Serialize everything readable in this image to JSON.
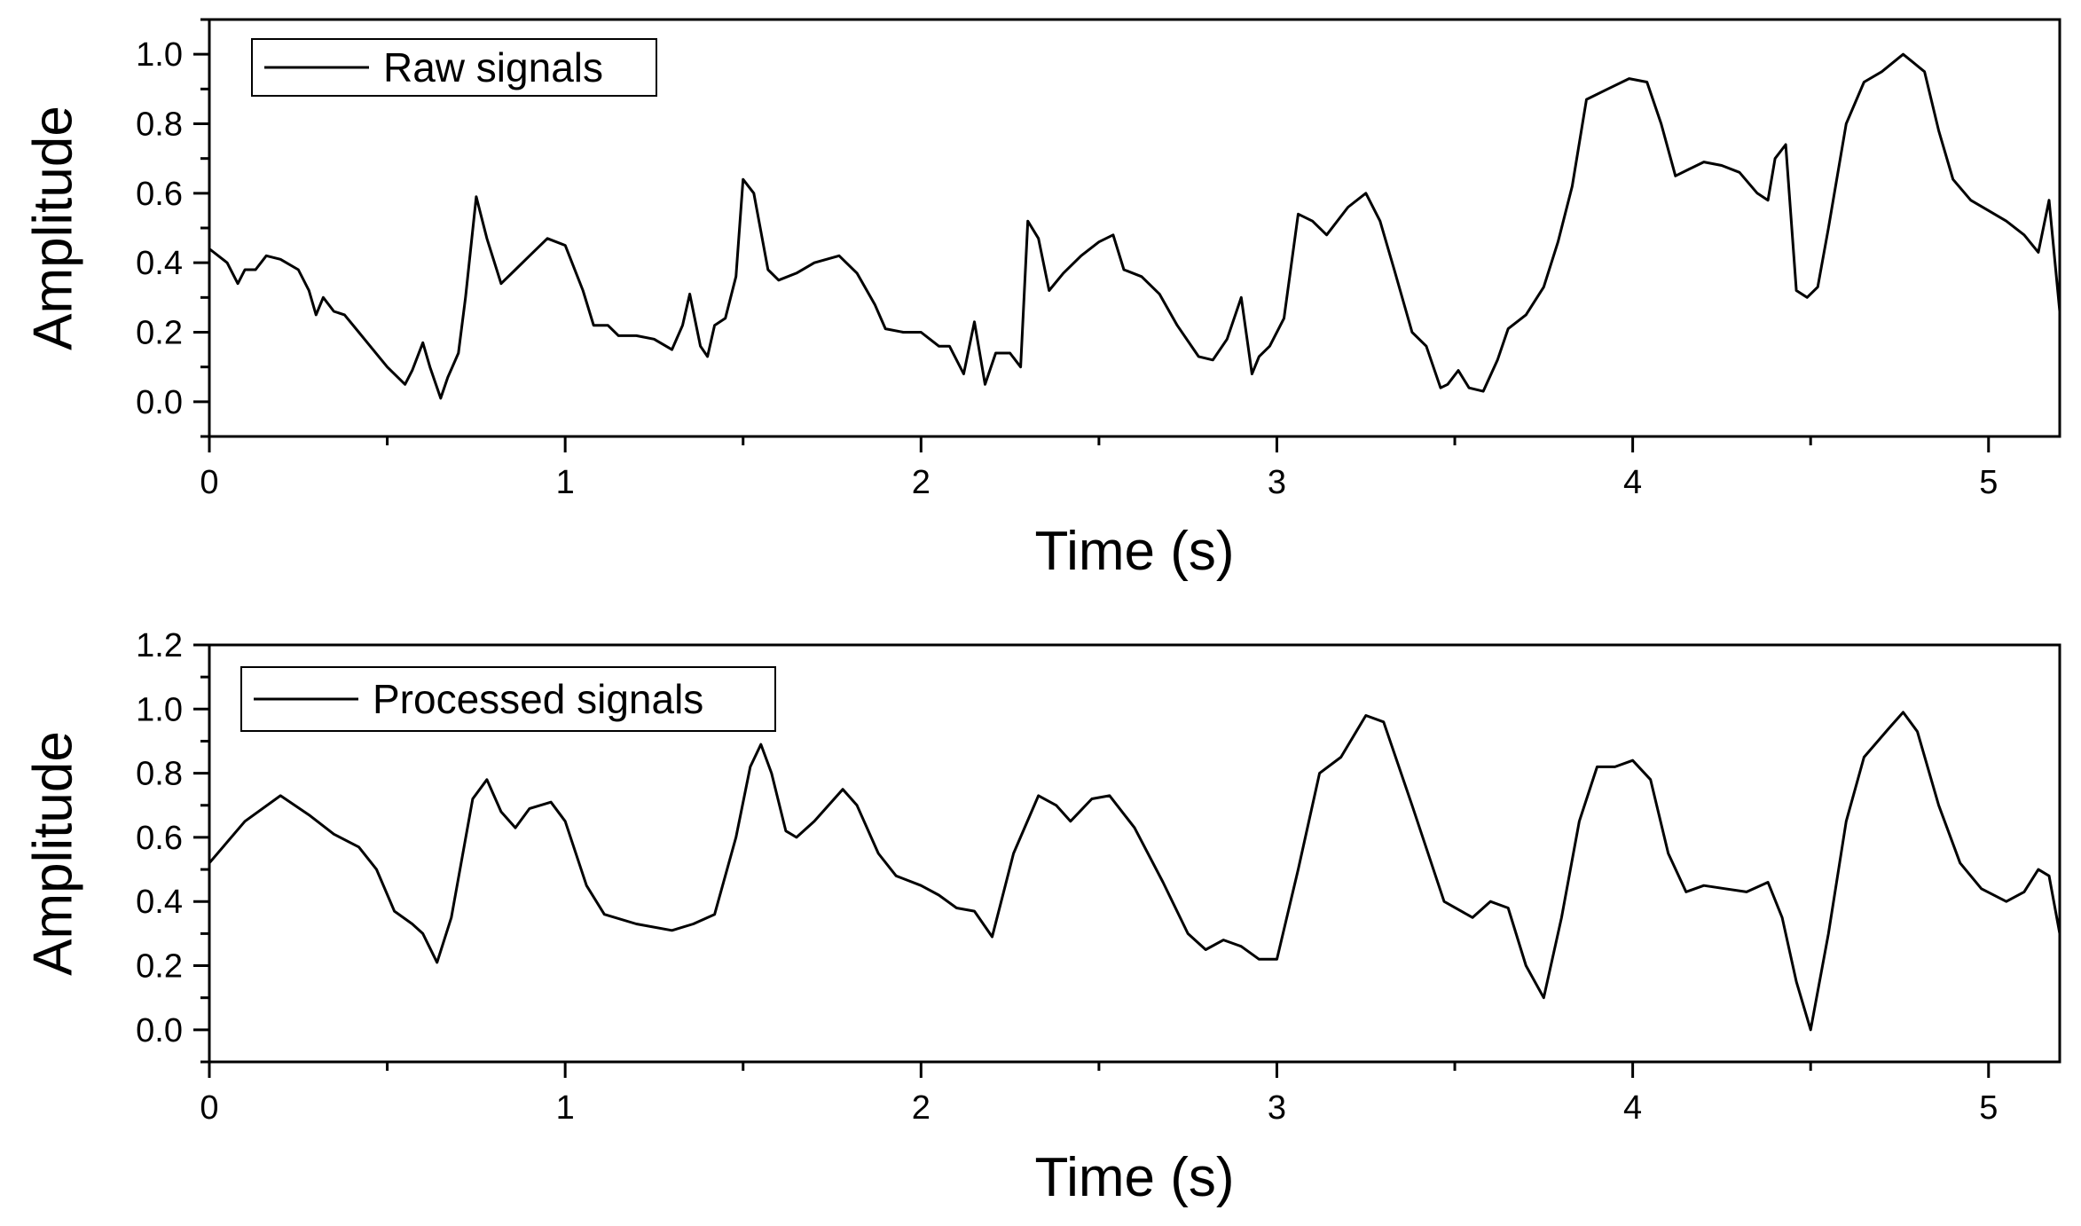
{
  "chart_data": [
    {
      "type": "line",
      "title": "",
      "xlabel": "Time (s)",
      "ylabel": "Amplitude",
      "xlim": [
        0,
        5.2
      ],
      "ylim": [
        -0.1,
        1.1
      ],
      "xticks": [
        0,
        1,
        2,
        3,
        4,
        5
      ],
      "xtick_labels": [
        "0",
        "1",
        "2",
        "3",
        "4",
        "5"
      ],
      "yticks": [
        0.0,
        0.2,
        0.4,
        0.6,
        0.8,
        1.0
      ],
      "ytick_labels": [
        "0.0",
        "0.2",
        "0.4",
        "0.6",
        "0.8",
        "1.0"
      ],
      "legend_position": "top-left",
      "grid": false,
      "series": [
        {
          "name": "Raw signals",
          "color": "#000000",
          "x": [
            0,
            0.05,
            0.08,
            0.1,
            0.13,
            0.16,
            0.2,
            0.25,
            0.28,
            0.3,
            0.32,
            0.35,
            0.38,
            0.42,
            0.46,
            0.5,
            0.55,
            0.57,
            0.6,
            0.62,
            0.65,
            0.67,
            0.7,
            0.72,
            0.75,
            0.78,
            0.82,
            0.86,
            0.9,
            0.95,
            1.0,
            1.05,
            1.08,
            1.12,
            1.15,
            1.2,
            1.25,
            1.3,
            1.33,
            1.35,
            1.38,
            1.4,
            1.42,
            1.45,
            1.48,
            1.5,
            1.53,
            1.57,
            1.6,
            1.65,
            1.7,
            1.77,
            1.82,
            1.87,
            1.9,
            1.95,
            2.0,
            2.05,
            2.08,
            2.12,
            2.15,
            2.18,
            2.21,
            2.25,
            2.28,
            2.3,
            2.33,
            2.36,
            2.4,
            2.45,
            2.5,
            2.54,
            2.57,
            2.62,
            2.67,
            2.72,
            2.78,
            2.82,
            2.86,
            2.9,
            2.93,
            2.95,
            2.98,
            3.02,
            3.06,
            3.1,
            3.14,
            3.2,
            3.25,
            3.29,
            3.33,
            3.38,
            3.42,
            3.46,
            3.48,
            3.51,
            3.54,
            3.58,
            3.62,
            3.65,
            3.7,
            3.75,
            3.79,
            3.83,
            3.87,
            3.93,
            3.99,
            4.04,
            4.08,
            4.12,
            4.16,
            4.2,
            4.25,
            4.3,
            4.35,
            4.38,
            4.4,
            4.43,
            4.46,
            4.49,
            4.52,
            4.55,
            4.6,
            4.65,
            4.7,
            4.76,
            4.82,
            4.86,
            4.9,
            4.95,
            5.0,
            5.05,
            5.1,
            5.14,
            5.17,
            5.2
          ],
          "y": [
            0.44,
            0.4,
            0.34,
            0.38,
            0.38,
            0.42,
            0.41,
            0.38,
            0.32,
            0.25,
            0.3,
            0.26,
            0.25,
            0.2,
            0.15,
            0.1,
            0.05,
            0.09,
            0.17,
            0.1,
            0.01,
            0.07,
            0.14,
            0.3,
            0.59,
            0.47,
            0.34,
            0.38,
            0.42,
            0.47,
            0.45,
            0.32,
            0.22,
            0.22,
            0.19,
            0.19,
            0.18,
            0.15,
            0.22,
            0.31,
            0.16,
            0.13,
            0.22,
            0.24,
            0.36,
            0.64,
            0.6,
            0.38,
            0.35,
            0.37,
            0.4,
            0.42,
            0.37,
            0.28,
            0.21,
            0.2,
            0.2,
            0.16,
            0.16,
            0.08,
            0.23,
            0.05,
            0.14,
            0.14,
            0.1,
            0.52,
            0.47,
            0.32,
            0.37,
            0.42,
            0.46,
            0.48,
            0.38,
            0.36,
            0.31,
            0.22,
            0.13,
            0.12,
            0.18,
            0.3,
            0.08,
            0.13,
            0.16,
            0.24,
            0.54,
            0.52,
            0.48,
            0.56,
            0.6,
            0.52,
            0.38,
            0.2,
            0.16,
            0.04,
            0.05,
            0.09,
            0.04,
            0.03,
            0.12,
            0.21,
            0.25,
            0.33,
            0.46,
            0.62,
            0.87,
            0.9,
            0.93,
            0.92,
            0.8,
            0.65,
            0.67,
            0.69,
            0.68,
            0.66,
            0.6,
            0.58,
            0.7,
            0.74,
            0.32,
            0.3,
            0.33,
            0.5,
            0.8,
            0.92,
            0.95,
            1.0,
            0.95,
            0.78,
            0.64,
            0.58,
            0.55,
            0.52,
            0.48,
            0.43,
            0.58,
            0.26
          ]
        }
      ]
    },
    {
      "type": "line",
      "title": "",
      "xlabel": "Time (s)",
      "ylabel": "Amplitude",
      "xlim": [
        0,
        5.2
      ],
      "ylim": [
        -0.1,
        1.2
      ],
      "xticks": [
        0,
        1,
        2,
        3,
        4,
        5
      ],
      "xtick_labels": [
        "0",
        "1",
        "2",
        "3",
        "4",
        "5"
      ],
      "yticks": [
        0.0,
        0.2,
        0.4,
        0.6,
        0.8,
        1.0,
        1.2
      ],
      "ytick_labels": [
        "0.0",
        "0.2",
        "0.4",
        "0.6",
        "0.8",
        "1.0",
        "1.2"
      ],
      "legend_position": "top-left",
      "grid": false,
      "series": [
        {
          "name": "Processed signals",
          "color": "#000000",
          "x": [
            0,
            0.1,
            0.2,
            0.28,
            0.35,
            0.42,
            0.47,
            0.52,
            0.57,
            0.6,
            0.64,
            0.68,
            0.74,
            0.78,
            0.82,
            0.86,
            0.9,
            0.96,
            1.0,
            1.06,
            1.11,
            1.2,
            1.3,
            1.36,
            1.42,
            1.48,
            1.52,
            1.55,
            1.58,
            1.62,
            1.65,
            1.7,
            1.78,
            1.82,
            1.88,
            1.93,
            2.0,
            2.05,
            2.1,
            2.15,
            2.2,
            2.26,
            2.33,
            2.38,
            2.42,
            2.48,
            2.53,
            2.6,
            2.68,
            2.75,
            2.8,
            2.85,
            2.9,
            2.95,
            3.0,
            3.06,
            3.12,
            3.18,
            3.25,
            3.3,
            3.38,
            3.47,
            3.55,
            3.6,
            3.65,
            3.7,
            3.75,
            3.8,
            3.85,
            3.9,
            3.95,
            4.0,
            4.05,
            4.1,
            4.15,
            4.2,
            4.26,
            4.32,
            4.38,
            4.42,
            4.46,
            4.5,
            4.55,
            4.6,
            4.65,
            4.72,
            4.76,
            4.8,
            4.86,
            4.92,
            4.98,
            5.05,
            5.1,
            5.14,
            5.17,
            5.2
          ],
          "y": [
            0.52,
            0.65,
            0.73,
            0.67,
            0.61,
            0.57,
            0.5,
            0.37,
            0.33,
            0.3,
            0.21,
            0.35,
            0.72,
            0.78,
            0.68,
            0.63,
            0.69,
            0.71,
            0.65,
            0.45,
            0.36,
            0.33,
            0.31,
            0.33,
            0.36,
            0.6,
            0.82,
            0.89,
            0.8,
            0.62,
            0.6,
            0.65,
            0.75,
            0.7,
            0.55,
            0.48,
            0.45,
            0.42,
            0.38,
            0.37,
            0.29,
            0.55,
            0.73,
            0.7,
            0.65,
            0.72,
            0.73,
            0.63,
            0.46,
            0.3,
            0.25,
            0.28,
            0.26,
            0.22,
            0.22,
            0.5,
            0.8,
            0.85,
            0.98,
            0.96,
            0.7,
            0.4,
            0.35,
            0.4,
            0.38,
            0.2,
            0.1,
            0.35,
            0.65,
            0.82,
            0.82,
            0.84,
            0.78,
            0.55,
            0.43,
            0.45,
            0.44,
            0.43,
            0.46,
            0.35,
            0.15,
            0.0,
            0.3,
            0.65,
            0.85,
            0.94,
            0.99,
            0.93,
            0.7,
            0.52,
            0.44,
            0.4,
            0.43,
            0.5,
            0.48,
            0.3
          ]
        }
      ]
    }
  ]
}
